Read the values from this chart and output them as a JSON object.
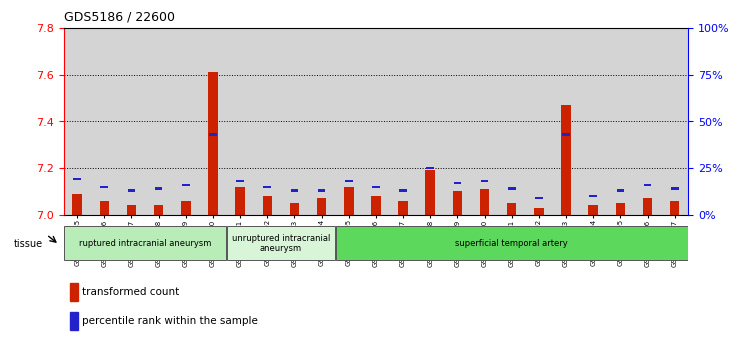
{
  "title": "GDS5186 / 22600",
  "samples": [
    "GSM1306885",
    "GSM1306886",
    "GSM1306887",
    "GSM1306888",
    "GSM1306889",
    "GSM1306890",
    "GSM1306891",
    "GSM1306892",
    "GSM1306893",
    "GSM1306894",
    "GSM1306895",
    "GSM1306896",
    "GSM1306897",
    "GSM1306898",
    "GSM1306899",
    "GSM1306900",
    "GSM1306901",
    "GSM1306902",
    "GSM1306903",
    "GSM1306904",
    "GSM1306905",
    "GSM1306906",
    "GSM1306907"
  ],
  "red_values": [
    7.09,
    7.06,
    7.04,
    7.04,
    7.06,
    7.61,
    7.12,
    7.08,
    7.05,
    7.07,
    7.12,
    7.08,
    7.06,
    7.19,
    7.1,
    7.11,
    7.05,
    7.03,
    7.47,
    7.04,
    7.05,
    7.07,
    7.06
  ],
  "blue_values": [
    19,
    15,
    13,
    14,
    16,
    43,
    18,
    15,
    13,
    13,
    18,
    15,
    13,
    25,
    17,
    18,
    14,
    9,
    43,
    10,
    13,
    16,
    14
  ],
  "ymin": 7.0,
  "ymax": 7.8,
  "y2min": 0,
  "y2max": 100,
  "yticks": [
    7.0,
    7.2,
    7.4,
    7.6,
    7.8
  ],
  "y2ticks": [
    0,
    25,
    50,
    75,
    100
  ],
  "groups": [
    {
      "label": "ruptured intracranial aneurysm",
      "start": 0,
      "end": 5,
      "color": "#b8edb8"
    },
    {
      "label": "unruptured intracranial\naneurysm",
      "start": 6,
      "end": 9,
      "color": "#d8f5d8"
    },
    {
      "label": "superficial temporal artery",
      "start": 10,
      "end": 22,
      "color": "#5cd85c"
    }
  ],
  "red_color": "#cc2200",
  "blue_color": "#2222cc",
  "col_bg_color": "#d4d4d4",
  "plot_bg_color": "#ffffff",
  "red_bar_width": 0.35,
  "blue_bar_width": 0.28,
  "blue_bar_height": 0.01
}
